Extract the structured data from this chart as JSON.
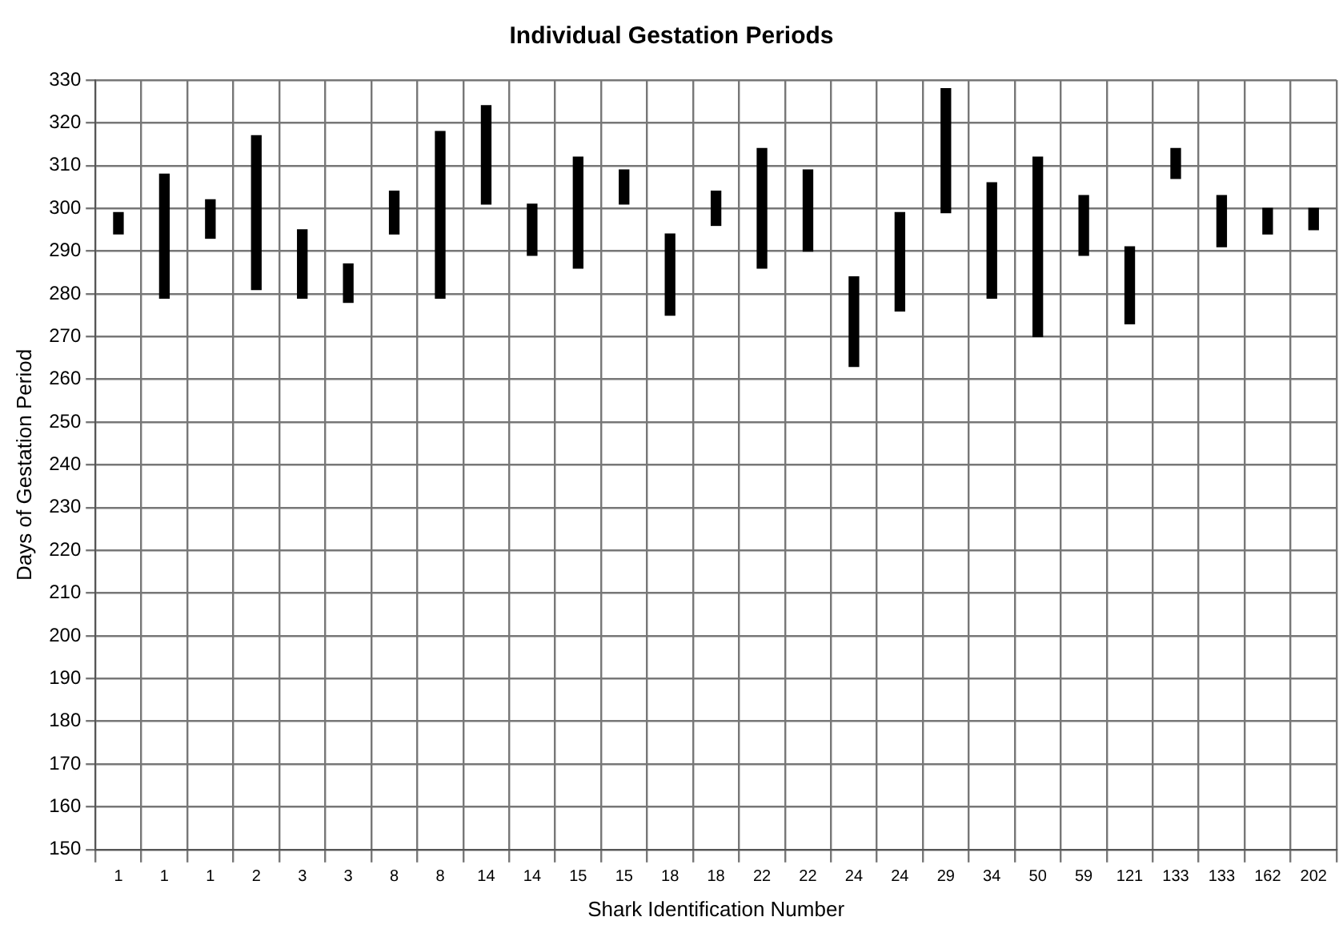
{
  "chart_data": {
    "type": "bar",
    "title": "Individual Gestation Periods",
    "xlabel": "Shark Identification Number",
    "ylabel": "Days of Gestation Period",
    "categories": [
      "1",
      "1",
      "1",
      "2",
      "3",
      "3",
      "8",
      "8",
      "14",
      "14",
      "15",
      "15",
      "18",
      "18",
      "22",
      "22",
      "24",
      "24",
      "29",
      "34",
      "50",
      "59",
      "121",
      "133",
      "133",
      "162",
      "202"
    ],
    "base": [
      294,
      279,
      293,
      281,
      279,
      278,
      294,
      279,
      301,
      289,
      286,
      301,
      275,
      296,
      286,
      290,
      263,
      276,
      299,
      279,
      270,
      289,
      273,
      307,
      291,
      294,
      295
    ],
    "values": [
      5,
      29,
      9,
      36,
      16,
      9,
      10,
      39,
      23,
      12,
      26,
      8,
      19,
      8,
      28,
      19,
      21,
      23,
      29,
      27,
      42,
      14,
      18,
      7,
      12,
      6,
      5
    ],
    "color": "#000000",
    "ylim": [
      150,
      330
    ],
    "yticks": [
      150,
      160,
      170,
      180,
      190,
      200,
      210,
      220,
      230,
      240,
      250,
      260,
      270,
      280,
      290,
      300,
      310,
      320,
      330
    ],
    "grid": true
  }
}
